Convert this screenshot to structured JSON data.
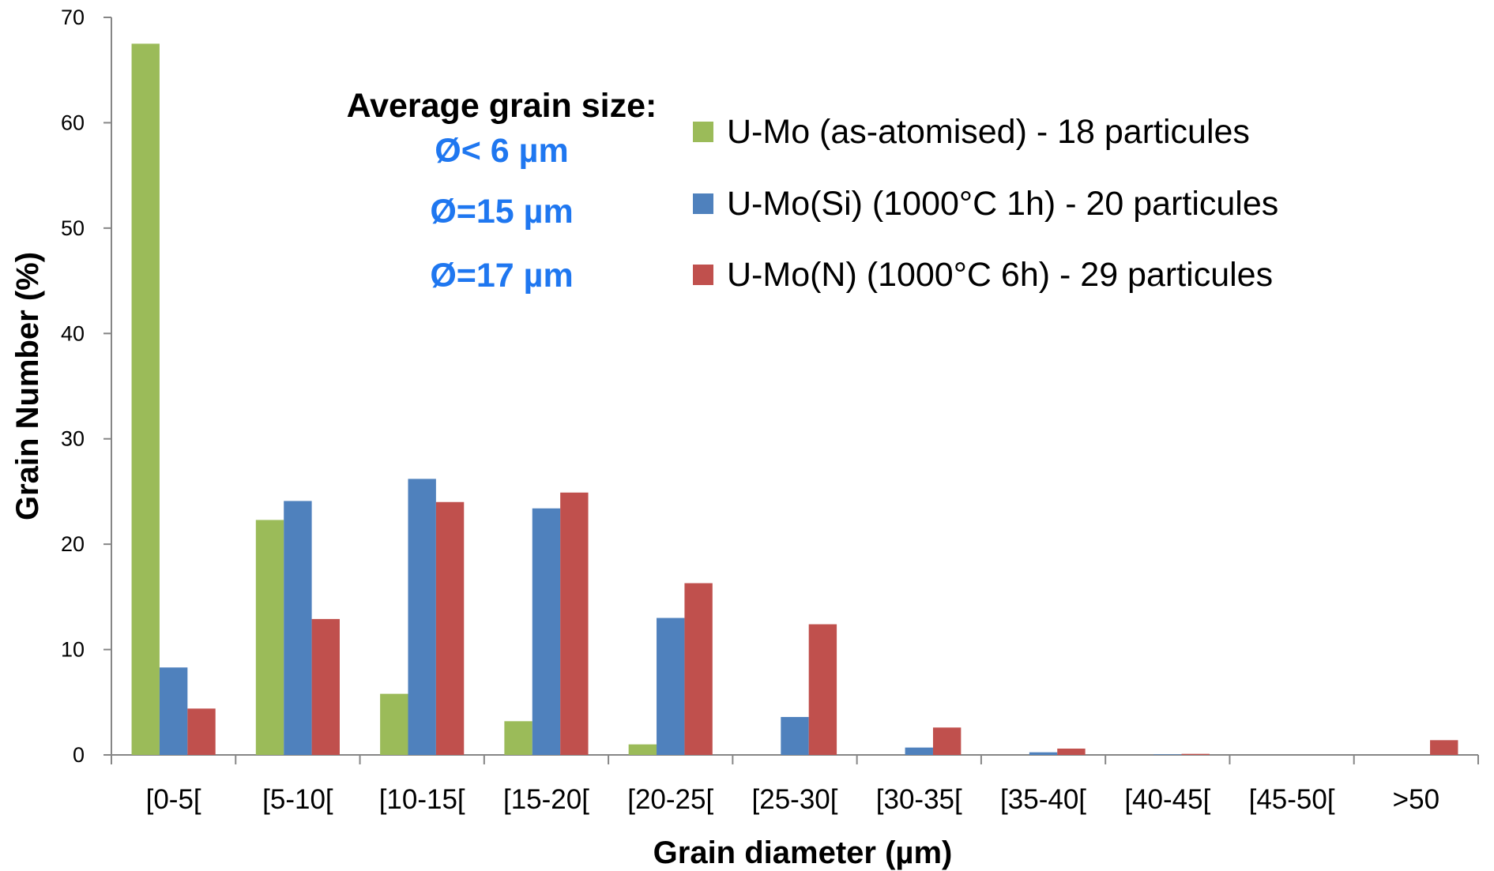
{
  "chart_data": {
    "type": "bar",
    "title": "",
    "xlabel": "Grain diameter (µm)",
    "ylabel": "Grain Number (%)",
    "ylim": [
      0,
      70
    ],
    "yticks": [
      "0",
      "10",
      "20",
      "30",
      "40",
      "50",
      "60",
      "70"
    ],
    "grid": false,
    "legend_position": "top-right",
    "categories": [
      "[0-5[",
      "[5-10[",
      "[10-15[",
      "[15-20[",
      "[20-25[",
      "[25-30[",
      "[30-35[",
      "[35-40[",
      "[40-45[",
      "[45-50[",
      ">50"
    ],
    "series": [
      {
        "name": "U-Mo  (as-atomised)  - 18 particules",
        "color": "#9BBB59",
        "values": [
          67.5,
          22.3,
          5.8,
          3.2,
          1.0,
          0,
          0,
          0,
          0,
          0,
          0
        ]
      },
      {
        "name": "U-Mo(Si)  (1000°C 1h)  - 20 particules",
        "color": "#4F81BD",
        "values": [
          8.3,
          24.1,
          26.2,
          23.4,
          13.0,
          3.6,
          0.7,
          0.25,
          0.05,
          0,
          0
        ]
      },
      {
        "name": "U-Mo(N)  (1000°C 6h)  - 29 particules",
        "color": "#C0504D",
        "values": [
          4.4,
          12.9,
          24.0,
          24.9,
          16.3,
          12.4,
          2.6,
          0.6,
          0.1,
          0,
          1.4
        ]
      }
    ],
    "annotation": {
      "title": "Average grain size:",
      "values": [
        "Ø< 6 µm",
        "Ø=15 µm",
        "Ø=17 µm"
      ],
      "color": "#1F77F0"
    }
  }
}
